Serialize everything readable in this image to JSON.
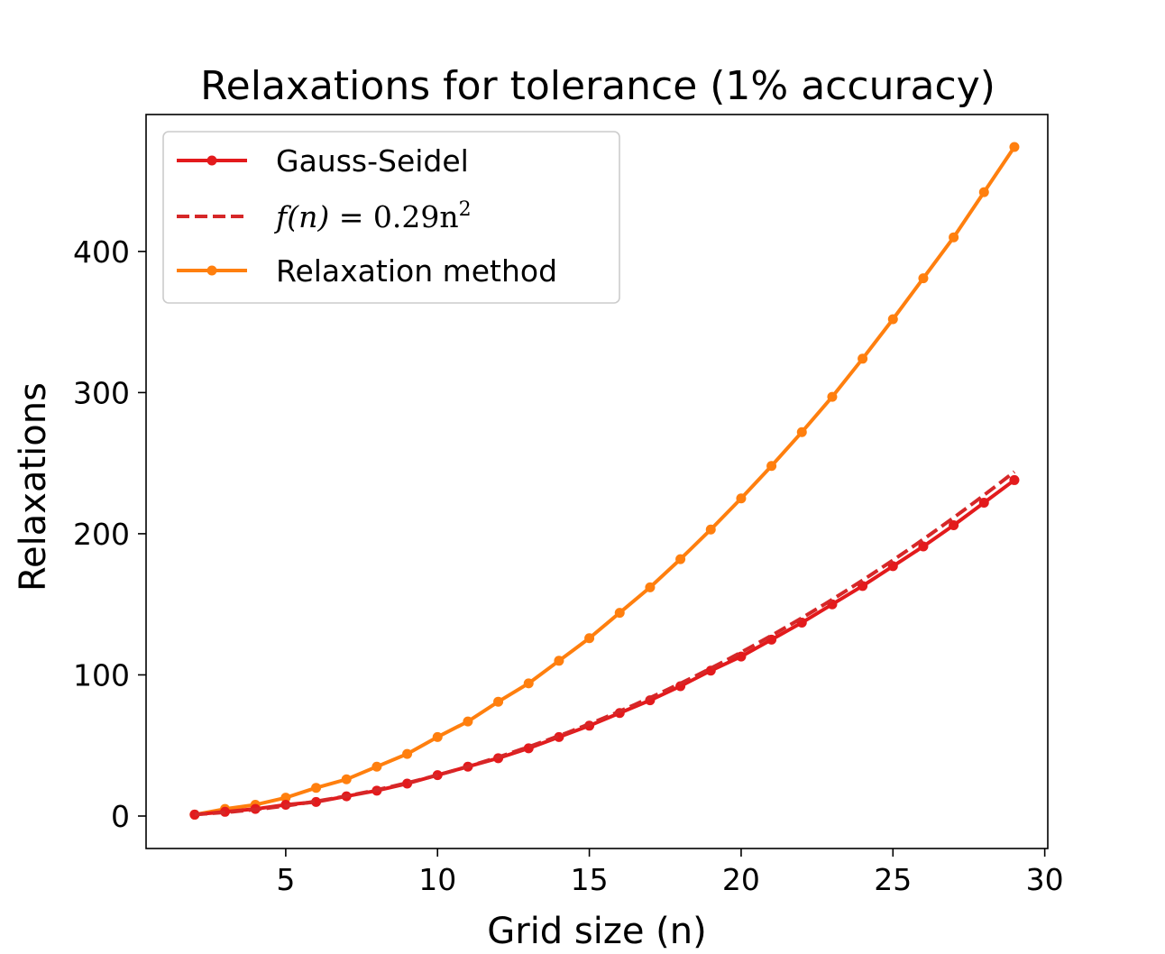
{
  "chart_data": {
    "type": "line",
    "title": "Relaxations for tolerance (1% accuracy)",
    "xlabel": "Grid size (n)",
    "ylabel": "Relaxations",
    "xlim": [
      0.4,
      30.1
    ],
    "ylim": [
      -23,
      497
    ],
    "xticks": [
      5,
      10,
      15,
      20,
      25,
      30
    ],
    "yticks": [
      0,
      100,
      200,
      300,
      400
    ],
    "legend_position": "upper-left",
    "grid": false,
    "x": [
      2,
      3,
      4,
      5,
      6,
      7,
      8,
      9,
      10,
      11,
      12,
      13,
      14,
      15,
      16,
      17,
      18,
      19,
      20,
      21,
      22,
      23,
      24,
      25,
      26,
      27,
      28,
      29
    ],
    "series": [
      {
        "name": "Gauss-Seidel",
        "color": "#e31a1c",
        "style": "solid-markers",
        "values": [
          1,
          3,
          5,
          8,
          10,
          14,
          18,
          23,
          29,
          35,
          41,
          48,
          56,
          64,
          73,
          82,
          92,
          103,
          113,
          125,
          137,
          150,
          163,
          177,
          191,
          206,
          222,
          238
        ]
      },
      {
        "name_prefix": "f(n)",
        "name_eq": " = 0.29n",
        "name_sup": "2",
        "color": "#d62728",
        "style": "dashed",
        "coefficient": 0.29
      },
      {
        "name": "Relaxation method",
        "color": "#ff7f0e",
        "style": "solid-markers",
        "values": [
          1,
          5,
          8,
          13,
          20,
          26,
          35,
          44,
          56,
          67,
          81,
          94,
          110,
          126,
          144,
          162,
          182,
          203,
          225,
          248,
          272,
          297,
          324,
          352,
          381,
          410,
          442,
          474
        ]
      }
    ]
  }
}
